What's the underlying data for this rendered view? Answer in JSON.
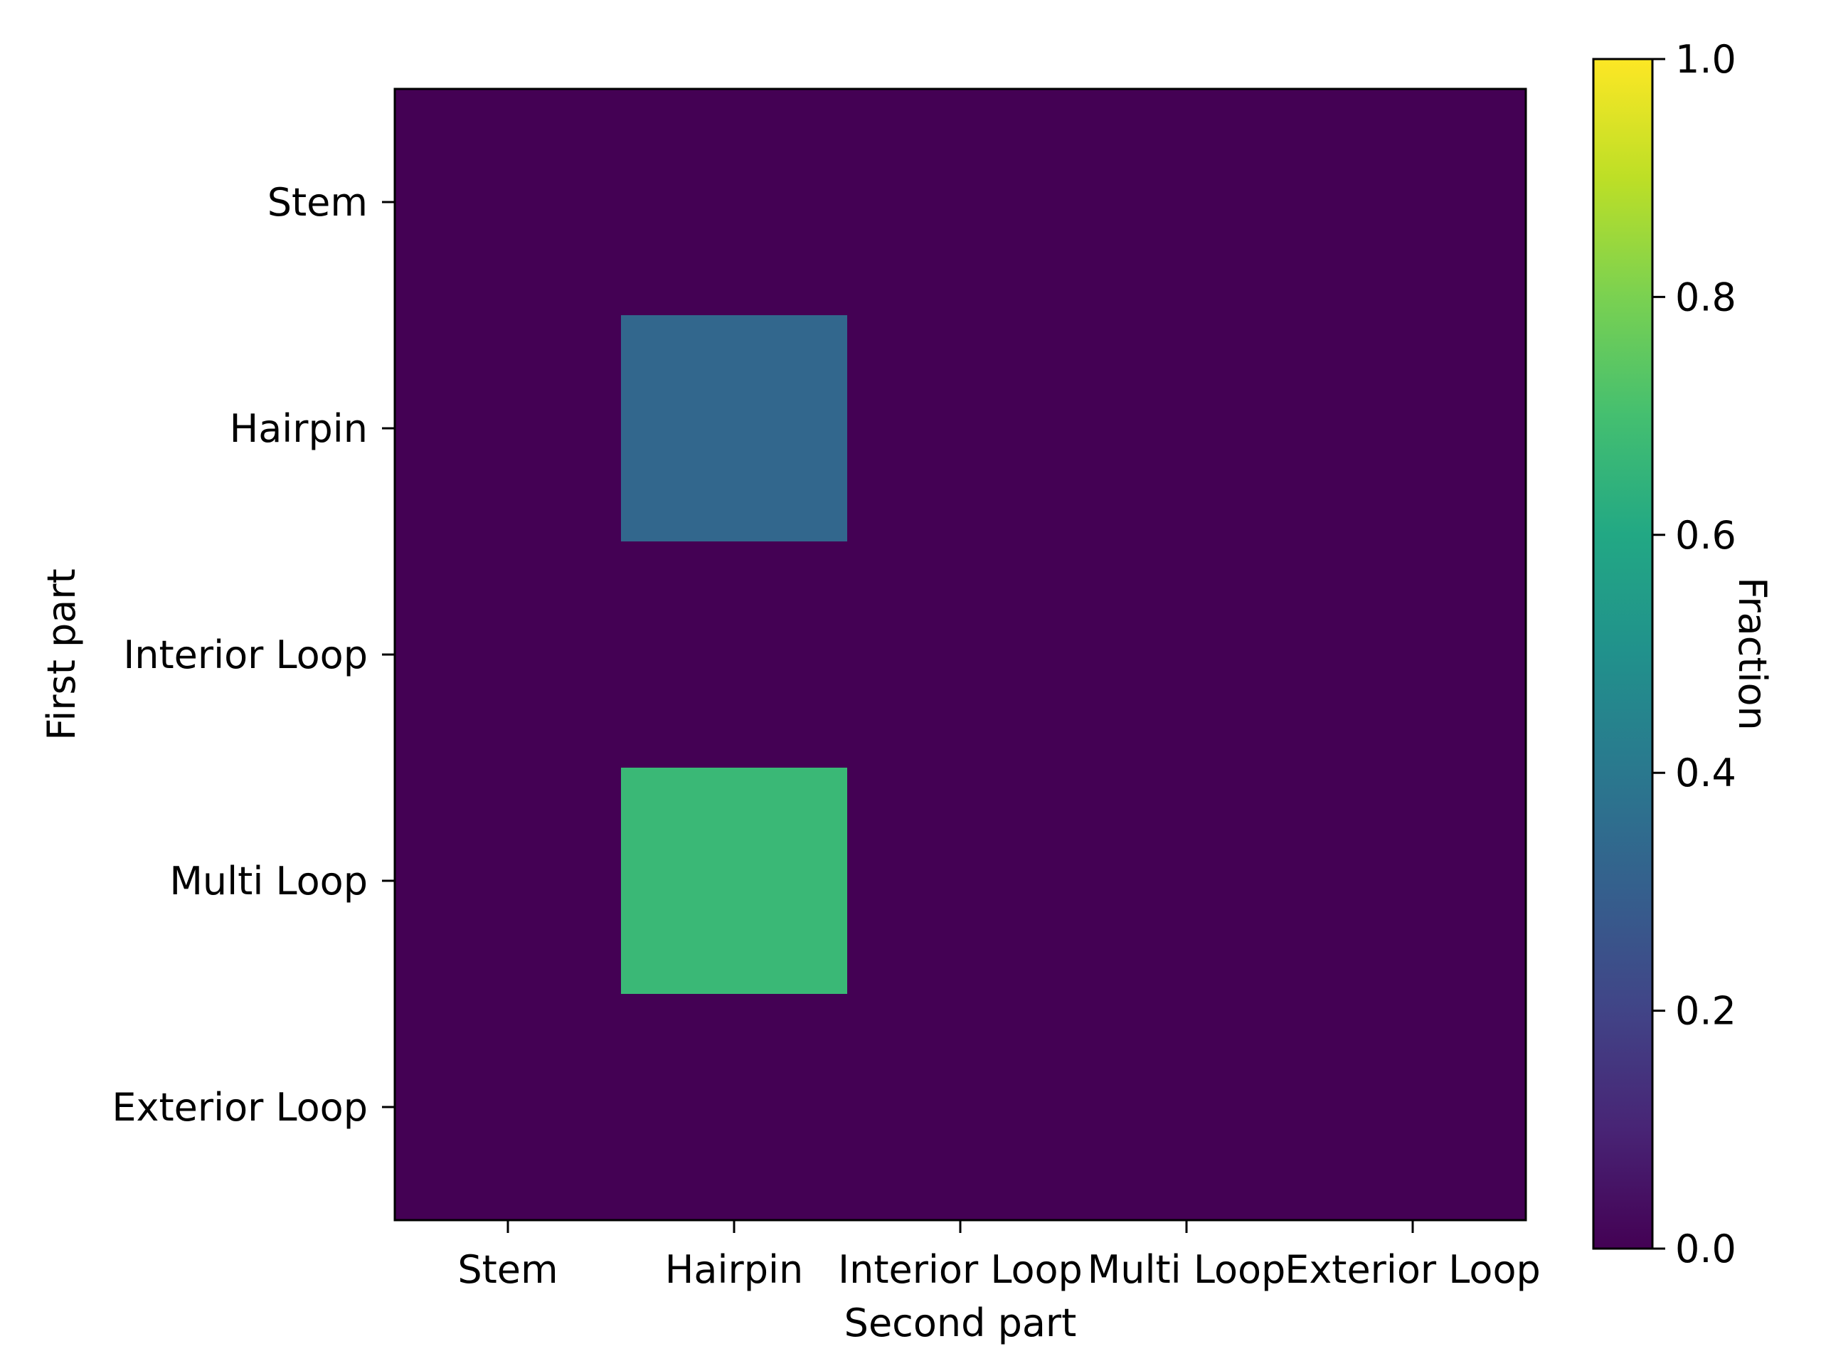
{
  "chart_data": {
    "type": "heatmap",
    "x_categories": [
      "Stem",
      "Hairpin",
      "Interior Loop",
      "Multi Loop",
      "Exterior Loop"
    ],
    "y_categories": [
      "Stem",
      "Hairpin",
      "Interior Loop",
      "Multi Loop",
      "Exterior Loop"
    ],
    "values": [
      [
        0,
        0,
        0,
        0,
        0
      ],
      [
        0,
        0.33,
        0,
        0,
        0
      ],
      [
        0,
        0,
        0,
        0,
        0
      ],
      [
        0,
        0.67,
        0,
        0,
        0
      ],
      [
        0,
        0,
        0,
        0,
        0
      ]
    ],
    "xlabel": "Second part",
    "ylabel": "First part",
    "colorbar": {
      "label": "Fraction",
      "range": [
        0,
        1
      ],
      "ticks": [
        "0.0",
        "0.2",
        "0.4",
        "0.6",
        "0.8",
        "1.0"
      ],
      "colormap": "viridis"
    },
    "grid": false
  }
}
